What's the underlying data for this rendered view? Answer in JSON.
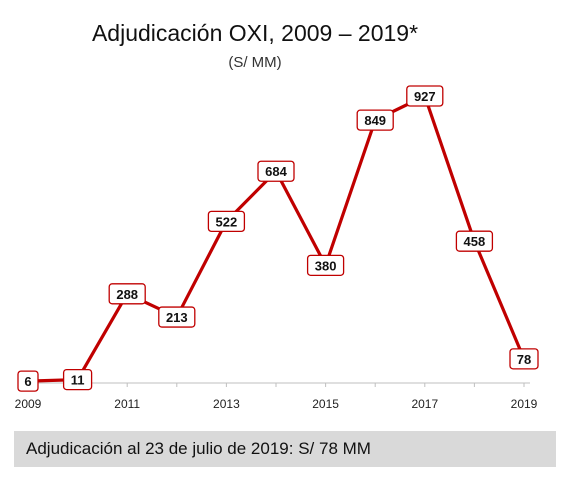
{
  "chart_data": {
    "type": "line",
    "title": "Adjudicación OXI, 2009 – 2019*",
    "subtitle": "(S/ MM)",
    "xlabel": "",
    "ylabel": "",
    "x": [
      2009,
      2010,
      2011,
      2012,
      2013,
      2014,
      2015,
      2016,
      2017,
      2018,
      2019
    ],
    "values": [
      6,
      11,
      288,
      213,
      522,
      684,
      380,
      849,
      927,
      458,
      78
    ],
    "tick_labels": [
      "2009",
      "2011",
      "2013",
      "2015",
      "2017",
      "2019"
    ],
    "ylim": [
      0,
      1000
    ],
    "grid": false,
    "legend": "none",
    "line_color": "#c00000",
    "label_border_color": "#c00000"
  },
  "footer": {
    "text": "Adjudicación al 23 de julio de 2019: S/ 78 MM"
  }
}
